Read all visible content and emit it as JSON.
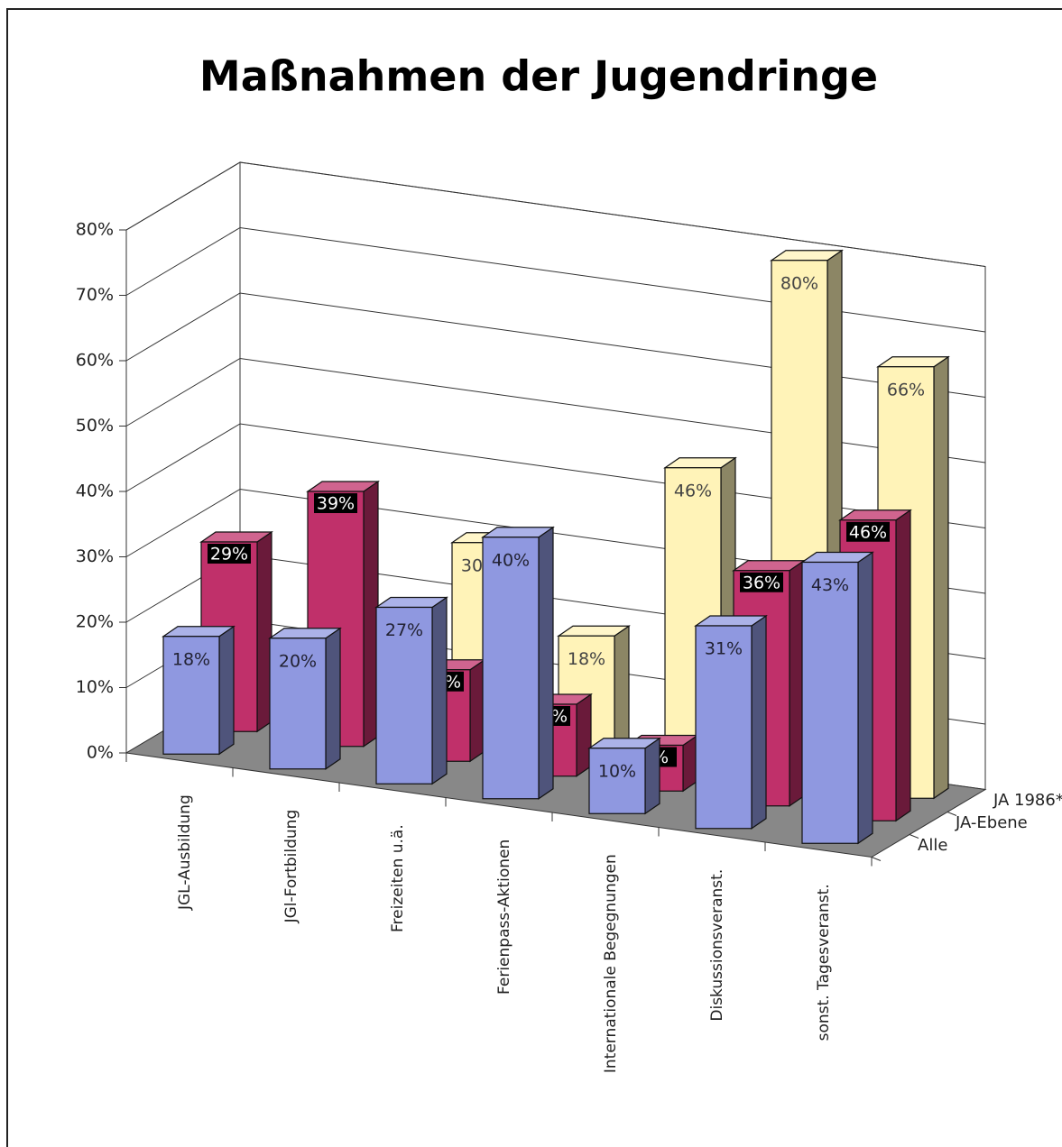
{
  "chart_data": {
    "type": "bar3d",
    "title": "Maßnahmen der Jugendringe",
    "categories": [
      "JGL-Ausbildung",
      "JGl-Fortbildung",
      "Freizeiten u.ä.",
      "Ferienpass-Aktionen",
      "Internationale Begegnungen",
      "Diskussionsveranst.",
      "sonst. Tagesveranst."
    ],
    "series": [
      {
        "name": "Alle",
        "color": "#8f98e0",
        "values": [
          18,
          20,
          27,
          40,
          10,
          31,
          43
        ],
        "value_labels": [
          "18%",
          "20%",
          "27%",
          "40%",
          "10%",
          "31%",
          "43%"
        ]
      },
      {
        "name": "JA-Ebene",
        "color": "#c0306a",
        "values": [
          29,
          39,
          14,
          11,
          7,
          36,
          46
        ],
        "value_labels": [
          "29%",
          "39%",
          "14%",
          "11%",
          "7%",
          "36%",
          "46%"
        ]
      },
      {
        "name": "JA 1986*",
        "color": "#fff3b8",
        "values": [
          null,
          null,
          30,
          18,
          46,
          80,
          66
        ],
        "value_labels": [
          null,
          null,
          "30%",
          "18%",
          "46%",
          "80%",
          "66%"
        ]
      }
    ],
    "ylim": [
      0,
      80
    ],
    "yticks": [
      {
        "value": 0,
        "label": "0%"
      },
      {
        "value": 10,
        "label": "10%"
      },
      {
        "value": 20,
        "label": "20%"
      },
      {
        "value": 30,
        "label": "30%"
      },
      {
        "value": 40,
        "label": "40%"
      },
      {
        "value": 50,
        "label": "50%"
      },
      {
        "value": 60,
        "label": "60%"
      },
      {
        "value": 70,
        "label": "70%"
      },
      {
        "value": 80,
        "label": "80%"
      }
    ],
    "grid": true
  }
}
